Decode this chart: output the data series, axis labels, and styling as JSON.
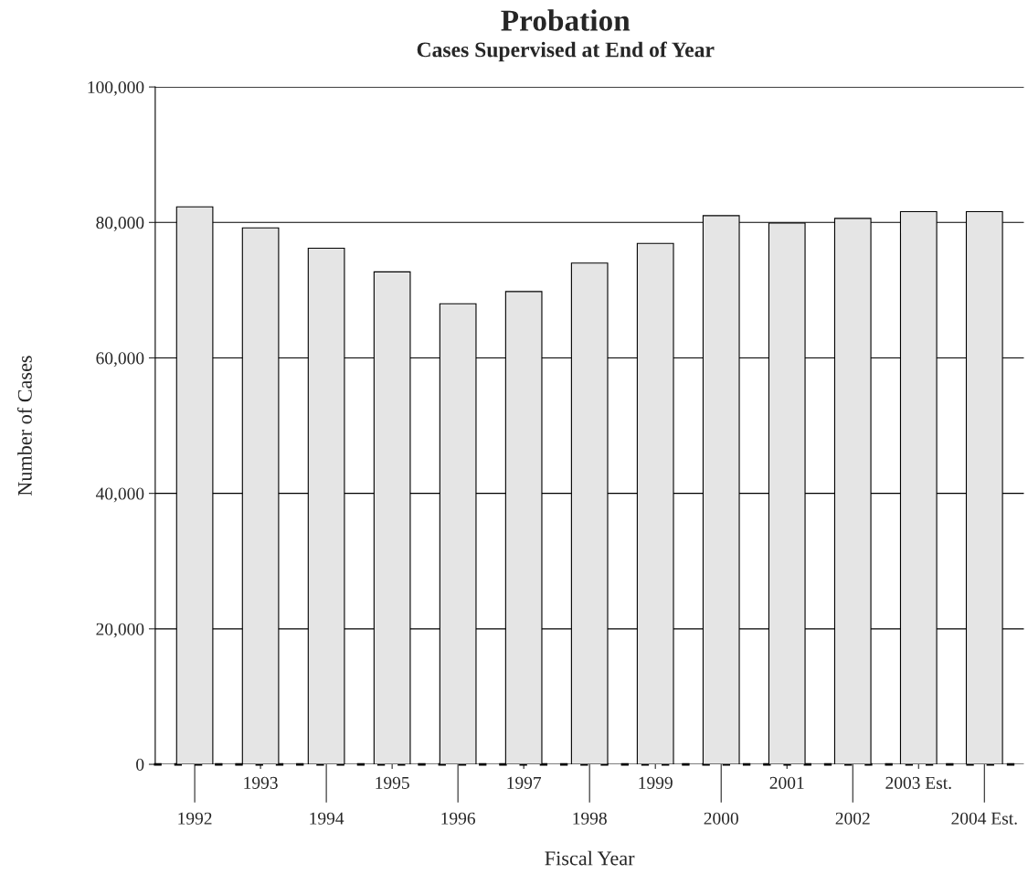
{
  "chart_data": {
    "type": "bar",
    "title": "Probation",
    "subtitle": "Cases Supervised at End of Year",
    "xlabel": "Fiscal Year",
    "ylabel": "Number of Cases",
    "categories": [
      "1992",
      "1993",
      "1994",
      "1995",
      "1996",
      "1997",
      "1998",
      "1999",
      "2000",
      "2001",
      "2002",
      "2003 Est.",
      "2004 Est."
    ],
    "values": [
      82300,
      79200,
      76200,
      72700,
      68000,
      69800,
      74000,
      76900,
      81000,
      79900,
      80600,
      81600,
      81600
    ],
    "color": "#e5e5e5",
    "ylim": [
      0,
      100000
    ],
    "yticks": [
      {
        "value": 0,
        "label": "0"
      },
      {
        "value": 20000,
        "label": "20,000"
      },
      {
        "value": 40000,
        "label": "40,000"
      },
      {
        "value": 60000,
        "label": "60,000"
      },
      {
        "value": 80000,
        "label": "80,000"
      },
      {
        "value": 100000,
        "label": "100,000"
      }
    ],
    "grid": "y",
    "legend": false
  }
}
